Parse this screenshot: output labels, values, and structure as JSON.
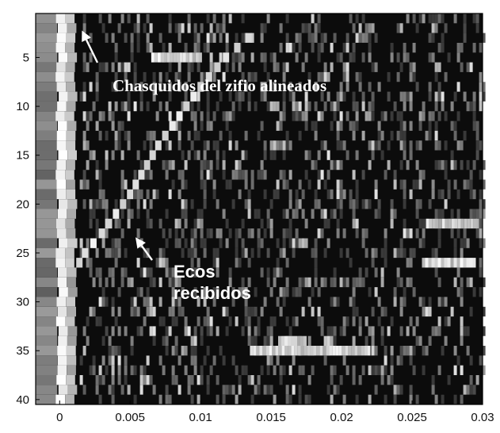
{
  "chart_data": {
    "type": "heatmap",
    "title": "",
    "xlabel": "",
    "ylabel": "",
    "xlim": [
      -0.0017,
      0.03
    ],
    "ylim": [
      40.5,
      0.5
    ],
    "rows": 40,
    "x_ticks": [
      "0",
      "0.005",
      "0.01",
      "0.015",
      "0.02",
      "0.025",
      "0.03"
    ],
    "x_tick_values": [
      0,
      0.005,
      0.01,
      0.015,
      0.02,
      0.025,
      0.03
    ],
    "y_ticks": [
      "5",
      "10",
      "15",
      "20",
      "25",
      "30",
      "35",
      "40"
    ],
    "y_tick_values": [
      5,
      10,
      15,
      20,
      25,
      30,
      35,
      40
    ],
    "colormap": "gray",
    "grid": false,
    "aligned_click_x": [
      0,
      0.0012
    ],
    "echo_trail": [
      {
        "row": 3,
        "x": 0.0134
      },
      {
        "row": 4,
        "x": 0.0126
      },
      {
        "row": 5,
        "x": 0.0118
      },
      {
        "row": 6,
        "x": 0.0112
      },
      {
        "row": 7,
        "x": 0.0106
      },
      {
        "row": 8,
        "x": 0.01
      },
      {
        "row": 9,
        "x": 0.0095
      },
      {
        "row": 10,
        "x": 0.009
      },
      {
        "row": 11,
        "x": 0.0085
      },
      {
        "row": 12,
        "x": 0.008
      },
      {
        "row": 13,
        "x": 0.0075
      },
      {
        "row": 14,
        "x": 0.007
      },
      {
        "row": 15,
        "x": 0.0066
      },
      {
        "row": 16,
        "x": 0.0062
      },
      {
        "row": 17,
        "x": 0.0058
      },
      {
        "row": 18,
        "x": 0.0054
      },
      {
        "row": 19,
        "x": 0.005
      },
      {
        "row": 20,
        "x": 0.0045
      },
      {
        "row": 21,
        "x": 0.004
      },
      {
        "row": 22,
        "x": 0.0035
      },
      {
        "row": 23,
        "x": 0.003
      },
      {
        "row": 24,
        "x": 0.0024
      },
      {
        "row": 25,
        "x": 0.0018
      },
      {
        "row": 26,
        "x": 0.0014
      }
    ],
    "bright_segments": [
      {
        "row": 5,
        "x0": 0.0065,
        "x1": 0.01
      },
      {
        "row": 22,
        "x0": 0.026,
        "x1": 0.0295
      },
      {
        "row": 26,
        "x0": 0.0257,
        "x1": 0.0295
      },
      {
        "row": 35,
        "x0": 0.0135,
        "x1": 0.022
      },
      {
        "row": 34,
        "x0": 0.0155,
        "x1": 0.0175
      }
    ],
    "annotations": [
      {
        "text": "Chasquidos del zifio alineados",
        "arrow_to": {
          "row": 2,
          "x": 0.0013
        }
      },
      {
        "text_lines": [
          "Ecos",
          "recibidos"
        ],
        "arrow_to": {
          "row": 23,
          "x": 0.0051
        }
      }
    ]
  }
}
